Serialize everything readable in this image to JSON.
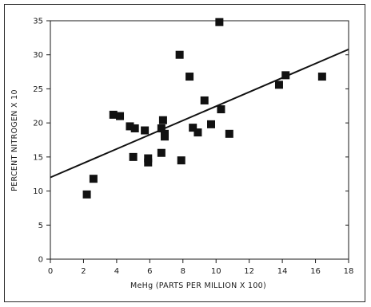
{
  "chart_data": {
    "type": "scatter",
    "title": "",
    "xlabel": "MeHg (PARTS PER MILLION X 100)",
    "ylabel": "PERCENT NITROGEN X 10",
    "xlim": [
      0,
      18
    ],
    "ylim": [
      0,
      35
    ],
    "xticks": [
      0,
      2,
      4,
      6,
      8,
      10,
      12,
      14,
      16,
      18
    ],
    "yticks": [
      0,
      5,
      10,
      15,
      20,
      25,
      30,
      35
    ],
    "grid": false,
    "legend": "none",
    "marker": "square",
    "marker_color": "#111111",
    "line_color": "#111111",
    "points": [
      {
        "x": 2.2,
        "y": 9.5
      },
      {
        "x": 2.6,
        "y": 11.8
      },
      {
        "x": 3.8,
        "y": 21.2
      },
      {
        "x": 4.2,
        "y": 21.0
      },
      {
        "x": 4.8,
        "y": 19.5
      },
      {
        "x": 5.0,
        "y": 15.0
      },
      {
        "x": 5.1,
        "y": 19.2
      },
      {
        "x": 5.7,
        "y": 18.9
      },
      {
        "x": 5.9,
        "y": 14.2
      },
      {
        "x": 5.9,
        "y": 14.8
      },
      {
        "x": 6.7,
        "y": 15.6
      },
      {
        "x": 6.7,
        "y": 19.2
      },
      {
        "x": 6.8,
        "y": 20.4
      },
      {
        "x": 6.9,
        "y": 18.4
      },
      {
        "x": 6.9,
        "y": 18.0
      },
      {
        "x": 7.8,
        "y": 30.0
      },
      {
        "x": 7.9,
        "y": 14.5
      },
      {
        "x": 8.4,
        "y": 26.8
      },
      {
        "x": 8.6,
        "y": 19.3
      },
      {
        "x": 8.9,
        "y": 18.6
      },
      {
        "x": 9.3,
        "y": 23.3
      },
      {
        "x": 9.7,
        "y": 19.8
      },
      {
        "x": 10.2,
        "y": 34.8
      },
      {
        "x": 10.3,
        "y": 22.0
      },
      {
        "x": 10.8,
        "y": 18.4
      },
      {
        "x": 13.8,
        "y": 25.6
      },
      {
        "x": 14.2,
        "y": 27.0
      },
      {
        "x": 16.4,
        "y": 26.8
      }
    ],
    "trendline": {
      "type": "linear",
      "x": [
        0,
        18
      ],
      "y": [
        12.0,
        30.8
      ]
    }
  }
}
